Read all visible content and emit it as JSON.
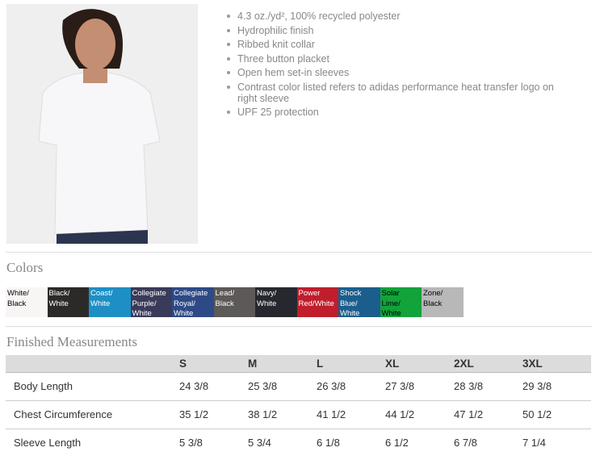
{
  "features": [
    "4.3 oz./yd², 100% recycled polyester",
    "Hydrophilic finish",
    "Ribbed knit collar",
    "Three button placket",
    "Open hem set-in sleeves",
    "Contrast color listed refers to adidas performance heat transfer logo on right sleeve",
    "UPF 25 protection"
  ],
  "colors": {
    "heading": "Colors",
    "swatches": [
      {
        "label": "White/ Black",
        "bg": "#f8f6f5",
        "fg": "#000000"
      },
      {
        "label": "Black/ White",
        "bg": "#2c2a29",
        "fg": "#ffffff"
      },
      {
        "label": "Coast/ White",
        "bg": "#1e8fc4",
        "fg": "#ffffff"
      },
      {
        "label": "Collegiate Purple/ White",
        "bg": "#3a3a5a",
        "fg": "#ffffff"
      },
      {
        "label": "Collegiate Royal/ White",
        "bg": "#2e4a86",
        "fg": "#ffffff"
      },
      {
        "label": "Lead/ Black",
        "bg": "#5c5958",
        "fg": "#ffffff"
      },
      {
        "label": "Navy/ White",
        "bg": "#27272f",
        "fg": "#ffffff"
      },
      {
        "label": "Power Red/White",
        "bg": "#c01e2c",
        "fg": "#ffffff"
      },
      {
        "label": "Shock Blue/ White",
        "bg": "#1b5e8e",
        "fg": "#ffffff"
      },
      {
        "label": "Solar Lime/ White",
        "bg": "#12a33a",
        "fg": "#000000"
      },
      {
        "label": "Zone/ Black",
        "bg": "#b8b8b8",
        "fg": "#000000"
      }
    ]
  },
  "measurements": {
    "heading": "Finished Measurements",
    "sizes": [
      "S",
      "M",
      "L",
      "XL",
      "2XL",
      "3XL"
    ],
    "rows": [
      {
        "label": "Body Length",
        "values": [
          "24 3/8",
          "25 3/8",
          "26 3/8",
          "27 3/8",
          "28 3/8",
          "29 3/8"
        ]
      },
      {
        "label": "Chest Circumference",
        "values": [
          "35 1/2",
          "38 1/2",
          "41 1/2",
          "44 1/2",
          "47 1/2",
          "50 1/2"
        ]
      },
      {
        "label": "Sleeve Length",
        "values": [
          "5 3/8",
          "5 3/4",
          "6 1/8",
          "6 1/2",
          "6 7/8",
          "7 1/4"
        ]
      }
    ]
  }
}
